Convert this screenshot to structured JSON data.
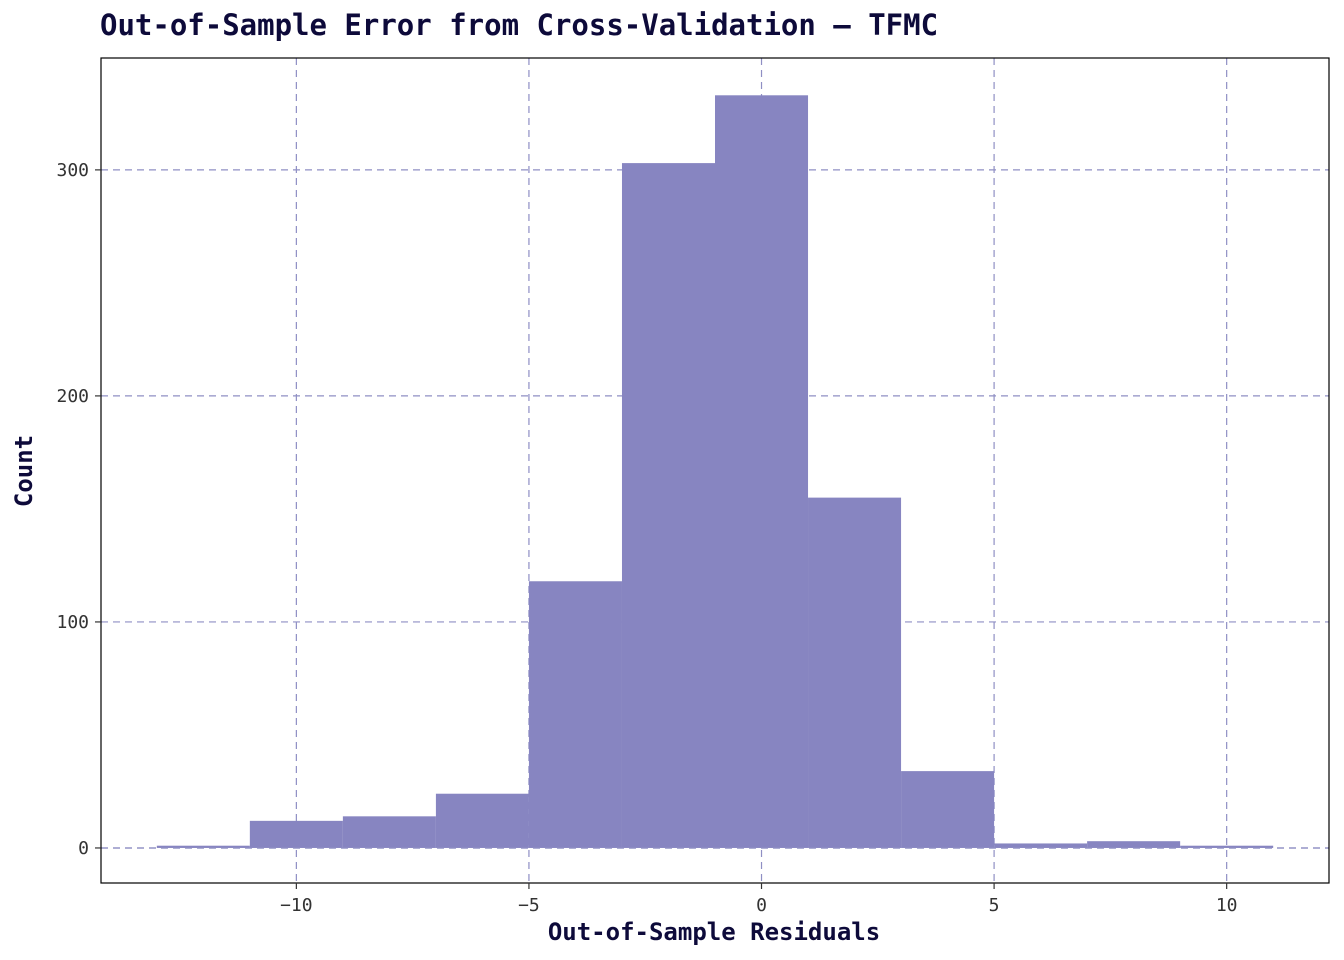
{
  "chart_data": {
    "type": "bar",
    "title": "Out-of-Sample Error from Cross-Validation – TFMC",
    "xlabel": "Out-of-Sample Residuals",
    "ylabel": "Count",
    "bar_color": "#8785c1",
    "grid_color": "#8f8fc4",
    "grid": true,
    "grid_style": "dashed",
    "bin_width": 2,
    "bins": [
      {
        "x0": -13,
        "x1": -11,
        "count": 1
      },
      {
        "x0": -11,
        "x1": -9,
        "count": 12
      },
      {
        "x0": -9,
        "x1": -7,
        "count": 14
      },
      {
        "x0": -7,
        "x1": -5,
        "count": 24
      },
      {
        "x0": -5,
        "x1": -3,
        "count": 118
      },
      {
        "x0": -3,
        "x1": -1,
        "count": 303
      },
      {
        "x0": -1,
        "x1": 1,
        "count": 333
      },
      {
        "x0": 1,
        "x1": 3,
        "count": 155
      },
      {
        "x0": 3,
        "x1": 5,
        "count": 34
      },
      {
        "x0": 5,
        "x1": 7,
        "count": 2
      },
      {
        "x0": 7,
        "x1": 9,
        "count": 3
      },
      {
        "x0": 9,
        "x1": 11,
        "count": 1
      }
    ],
    "xlim": [
      -14.2,
      12.2
    ],
    "ylim": [
      -15.5,
      349.5
    ],
    "x_ticks": [
      -10,
      -5,
      0,
      5,
      10
    ],
    "x_tick_labels": [
      "−10",
      "−5",
      "0",
      "5",
      "10"
    ],
    "y_ticks": [
      0,
      100,
      200,
      300
    ],
    "y_tick_labels": [
      "0",
      "100",
      "200",
      "300"
    ]
  }
}
